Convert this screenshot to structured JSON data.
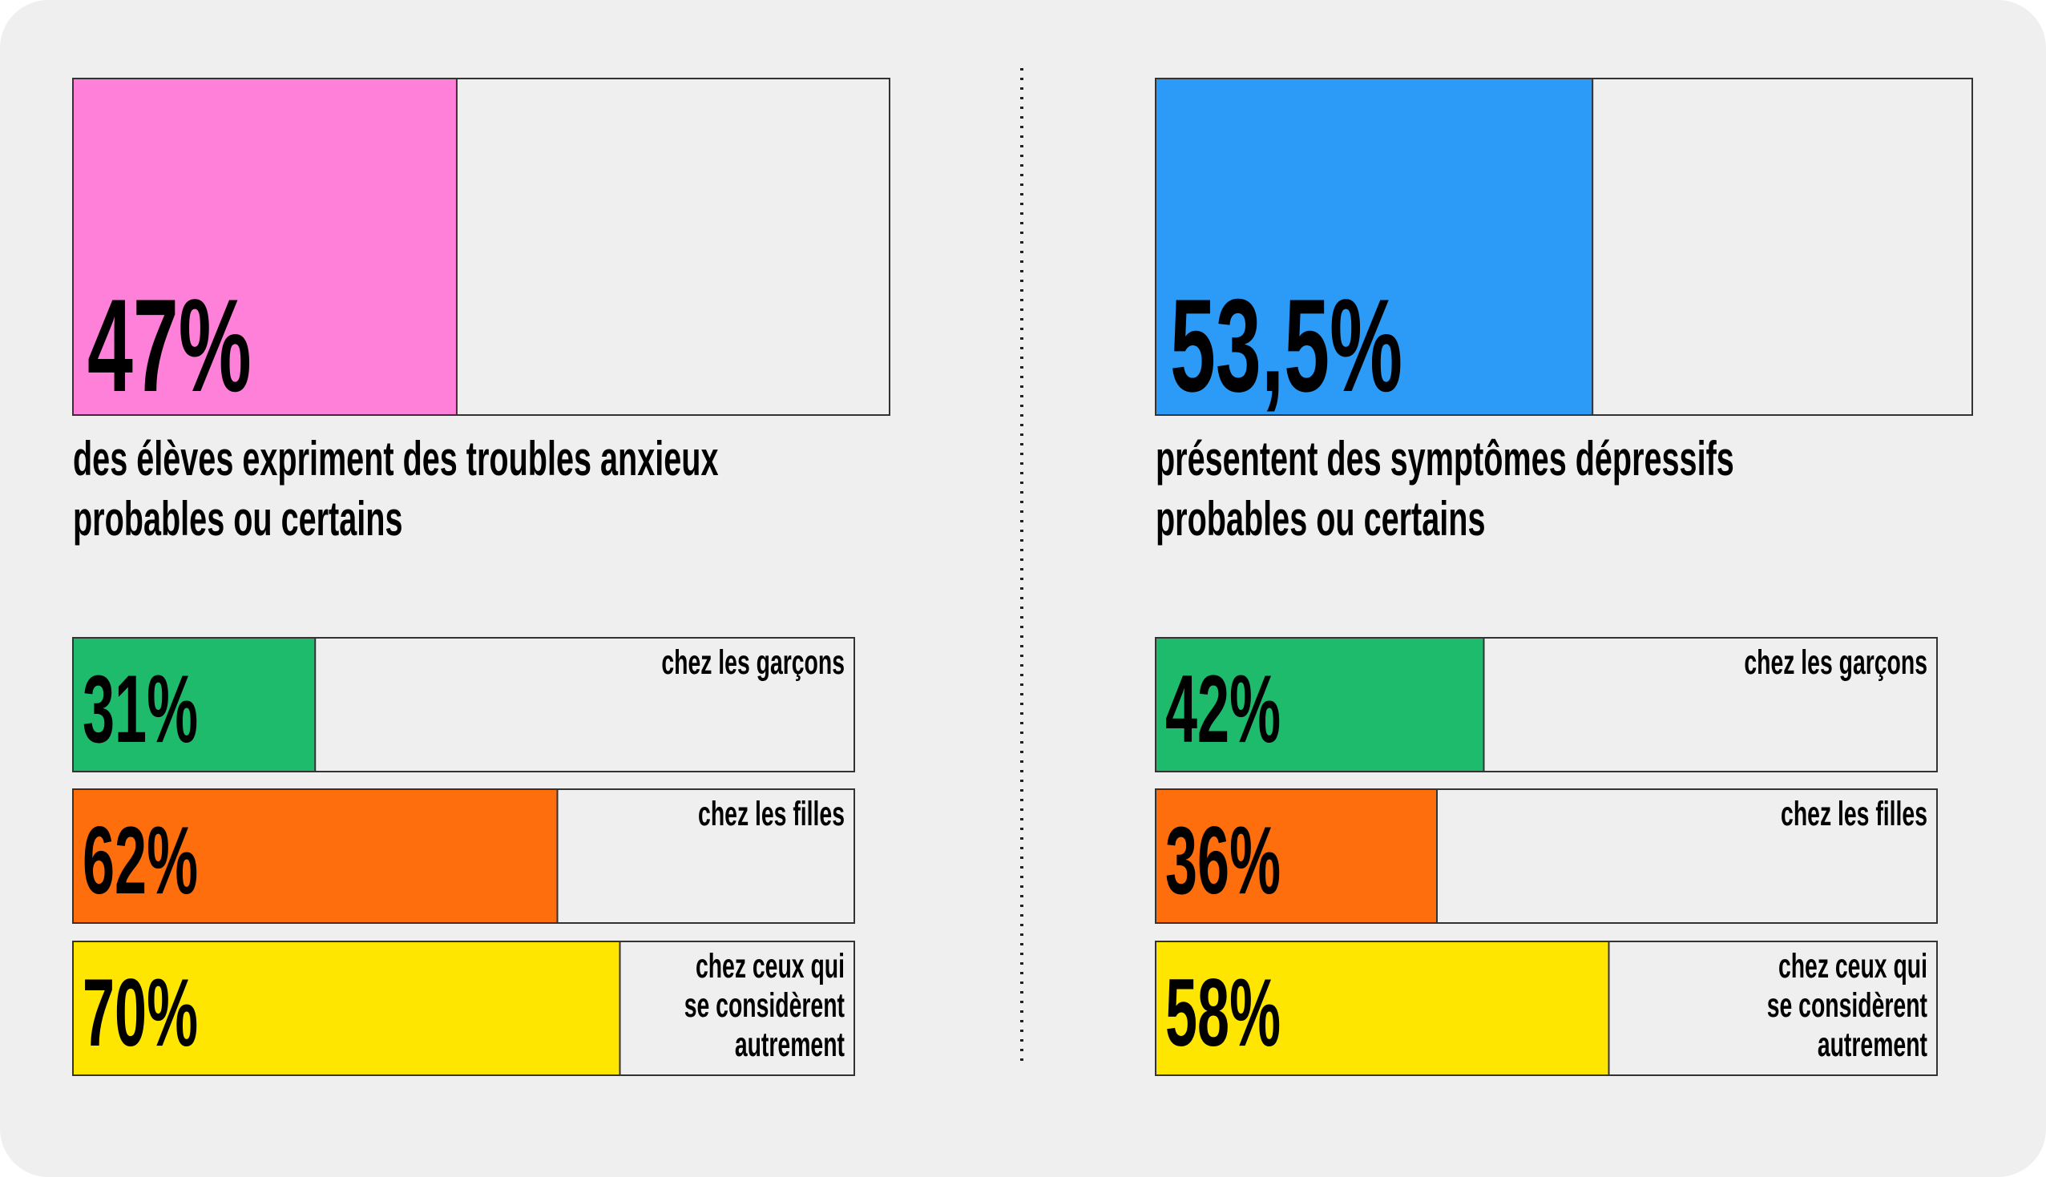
{
  "chart_data": [
    {
      "type": "bar",
      "xlim": [
        0,
        100
      ],
      "headline": {
        "value": 47,
        "value_label": "47%",
        "color": "#ff80d9",
        "caption": [
          "des élèves expriment des troubles anxieux",
          "probables ou certains"
        ]
      },
      "categories": [
        [
          "chez les garçons"
        ],
        [
          "chez les filles"
        ],
        [
          "chez ceux qui",
          "se considèrent",
          "autrement"
        ]
      ],
      "values": [
        31,
        62,
        70
      ],
      "value_labels": [
        "31%",
        "62%",
        "70%"
      ],
      "colors": [
        "#1fbb6c",
        "#ff6e0d",
        "#ffe600"
      ]
    },
    {
      "type": "bar",
      "xlim": [
        0,
        100
      ],
      "headline": {
        "value": 53.5,
        "value_label": "53,5%",
        "color": "#2b9bf7",
        "caption": [
          "présentent des symptômes dépressifs",
          "probables ou certains"
        ]
      },
      "categories": [
        [
          "chez les garçons"
        ],
        [
          "chez les filles"
        ],
        [
          "chez ceux qui",
          "se considèrent",
          "autrement"
        ]
      ],
      "values": [
        42,
        36,
        58
      ],
      "value_labels": [
        "42%",
        "36%",
        "58%"
      ],
      "colors": [
        "#1fbb6c",
        "#ff6e0d",
        "#ffe600"
      ]
    }
  ]
}
